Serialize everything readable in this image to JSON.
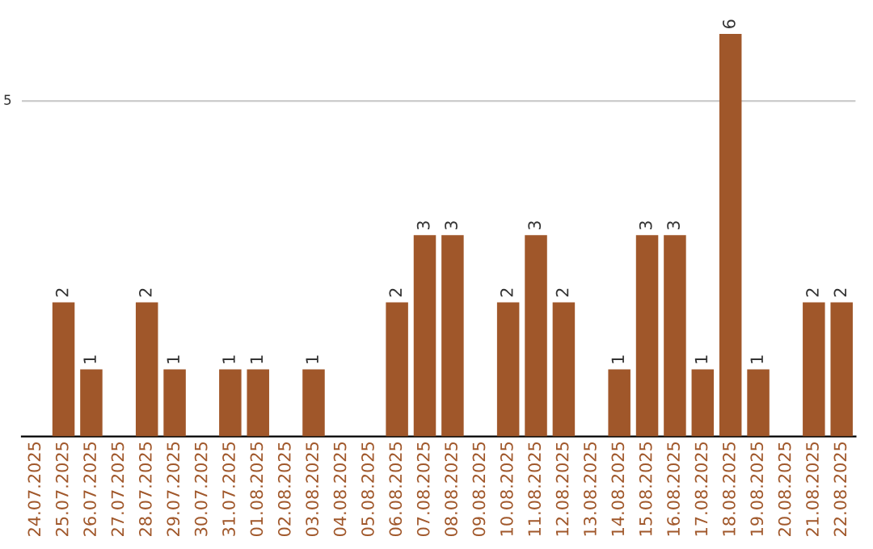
{
  "chart_data": {
    "type": "bar",
    "categories": [
      "24.07.2025",
      "25.07.2025",
      "26.07.2025",
      "27.07.2025",
      "28.07.2025",
      "29.07.2025",
      "30.07.2025",
      "31.07.2025",
      "01.08.2025",
      "02.08.2025",
      "03.08.2025",
      "04.08.2025",
      "05.08.2025",
      "06.08.2025",
      "07.08.2025",
      "08.08.2025",
      "09.08.2025",
      "10.08.2025",
      "11.08.2025",
      "12.08.2025",
      "13.08.2025",
      "14.08.2025",
      "15.08.2025",
      "16.08.2025",
      "17.08.2025",
      "18.08.2025",
      "19.08.2025",
      "20.08.2025",
      "21.08.2025",
      "22.08.2025"
    ],
    "values": [
      0,
      2,
      1,
      0,
      2,
      1,
      0,
      1,
      1,
      0,
      1,
      0,
      0,
      2,
      3,
      3,
      0,
      2,
      3,
      2,
      0,
      1,
      3,
      3,
      1,
      6,
      1,
      0,
      2,
      2
    ],
    "value_labels": [
      null,
      "2",
      "1",
      null,
      "2",
      "1",
      null,
      "1",
      "1",
      null,
      "1",
      null,
      null,
      "2",
      "3",
      "3",
      null,
      "2",
      "3",
      "2",
      null,
      "1",
      "3",
      "3",
      "1",
      "6",
      "1",
      null,
      "2",
      "2"
    ],
    "color": "#a0572a",
    "ref_lines": [
      {
        "axis": "y",
        "value": 5,
        "label": "5",
        "color": "#cccccc"
      }
    ]
  }
}
